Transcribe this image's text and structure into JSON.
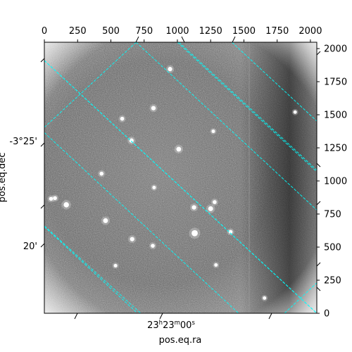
{
  "chart_data": {
    "type": "image",
    "xlabel": "pos.eq.ra",
    "ylabel": "pos.eq.dec",
    "x_pixel_axis": {
      "range": [
        0,
        2048
      ],
      "ticks": [
        0,
        250,
        500,
        750,
        1000,
        1250,
        1500,
        1750,
        2000
      ]
    },
    "y_pixel_axis": {
      "range": [
        0,
        2048
      ],
      "ticks": [
        0,
        250,
        500,
        750,
        1000,
        1250,
        1500,
        1750,
        2000
      ]
    },
    "ra_tick_labels": [
      "23h23m00s"
    ],
    "dec_tick_labels": [
      "-3°25'",
      "20'"
    ],
    "grid": true,
    "grid_color": "#00ffff",
    "colormap": "gray",
    "stars": [
      {
        "x": 1130,
        "y": 605,
        "brightness": 1.0
      },
      {
        "x": 165,
        "y": 820,
        "brightness": 0.8
      },
      {
        "x": 460,
        "y": 700,
        "brightness": 0.7
      },
      {
        "x": 660,
        "y": 560,
        "brightness": 0.6
      },
      {
        "x": 1250,
        "y": 790,
        "brightness": 0.7
      },
      {
        "x": 1125,
        "y": 800,
        "brightness": 0.6
      },
      {
        "x": 1010,
        "y": 1240,
        "brightness": 0.7
      },
      {
        "x": 655,
        "y": 1305,
        "brightness": 0.6
      },
      {
        "x": 945,
        "y": 1845,
        "brightness": 0.6
      },
      {
        "x": 820,
        "y": 1550,
        "brightness": 0.6
      },
      {
        "x": 585,
        "y": 1470,
        "brightness": 0.5
      },
      {
        "x": 430,
        "y": 1055,
        "brightness": 0.5
      },
      {
        "x": 815,
        "y": 510,
        "brightness": 0.5
      },
      {
        "x": 1400,
        "y": 615,
        "brightness": 0.5
      },
      {
        "x": 1280,
        "y": 840,
        "brightness": 0.5
      },
      {
        "x": 50,
        "y": 865,
        "brightness": 0.5
      },
      {
        "x": 80,
        "y": 870,
        "brightness": 0.5
      },
      {
        "x": 535,
        "y": 360,
        "brightness": 0.4
      },
      {
        "x": 1290,
        "y": 365,
        "brightness": 0.4
      },
      {
        "x": 1655,
        "y": 115,
        "brightness": 0.4
      },
      {
        "x": 825,
        "y": 950,
        "brightness": 0.4
      },
      {
        "x": 1885,
        "y": 1520,
        "brightness": 0.4
      },
      {
        "x": 1270,
        "y": 1375,
        "brightness": 0.4
      }
    ],
    "grid_lines": [
      {
        "x1": 0,
        "y1": 1910,
        "x2": 2048,
        "y2": 0
      },
      {
        "x1": 0,
        "y1": 1365,
        "x2": 1465,
        "y2": -5
      },
      {
        "x1": 0,
        "y1": 655,
        "x2": 700,
        "y2": 0
      },
      {
        "x1": 690,
        "y1": 2048,
        "x2": 2048,
        "y2": 780
      },
      {
        "x1": 1410,
        "y1": 2048,
        "x2": 2048,
        "y2": 1452
      },
      {
        "x1": 1805,
        "y1": 0,
        "x2": 2048,
        "y2": 230
      },
      {
        "x1": 1000,
        "y1": 2048,
        "x2": 2048,
        "y2": 1069
      },
      {
        "x1": 690,
        "y1": 2048,
        "x2": 0,
        "y2": 1405
      },
      {
        "x1": 0,
        "y1": 660,
        "x2": 725,
        "y2": 0
      },
      {
        "x1": 1012,
        "y1": 2048,
        "x2": 2048,
        "y2": 1082
      },
      {
        "x1": 0,
        "y1": 1910,
        "x2": 2048,
        "y2": 0
      }
    ]
  }
}
